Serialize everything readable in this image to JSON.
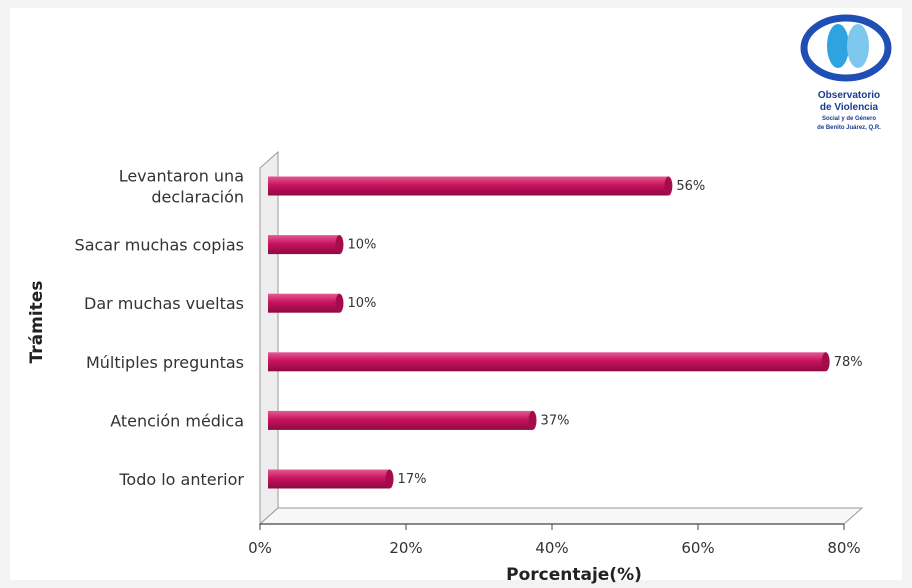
{
  "chart_data": {
    "type": "bar",
    "orientation": "horizontal",
    "categories": [
      [
        "Levantaron una",
        "declaración"
      ],
      [
        "Sacar muchas copias"
      ],
      [
        "Dar muchas vueltas"
      ],
      [
        "Múltiples preguntas"
      ],
      [
        "Atención médica"
      ],
      [
        "Todo lo anterior"
      ]
    ],
    "values": [
      56,
      10,
      10,
      78,
      37,
      17
    ],
    "data_labels": [
      "56%",
      "10%",
      "10%",
      "78%",
      "37%",
      "17%"
    ],
    "xlabel": "Porcentaje(%)",
    "ylabel": "Trámites",
    "xlim": [
      0,
      80
    ],
    "xticks": [
      "0%",
      "20%",
      "40%",
      "60%",
      "80%"
    ],
    "xtick_values": [
      0,
      20,
      40,
      60,
      80
    ],
    "bar_color": "#c8135e",
    "grid": false,
    "legend": "none"
  },
  "logo": {
    "lines": [
      "Observatorio",
      "de Violencia",
      "Social y de Género",
      "de Benito Juárez, Q.R."
    ],
    "colors": {
      "primary": "#1f4fb5",
      "secondary": "#2ea3e0"
    }
  }
}
